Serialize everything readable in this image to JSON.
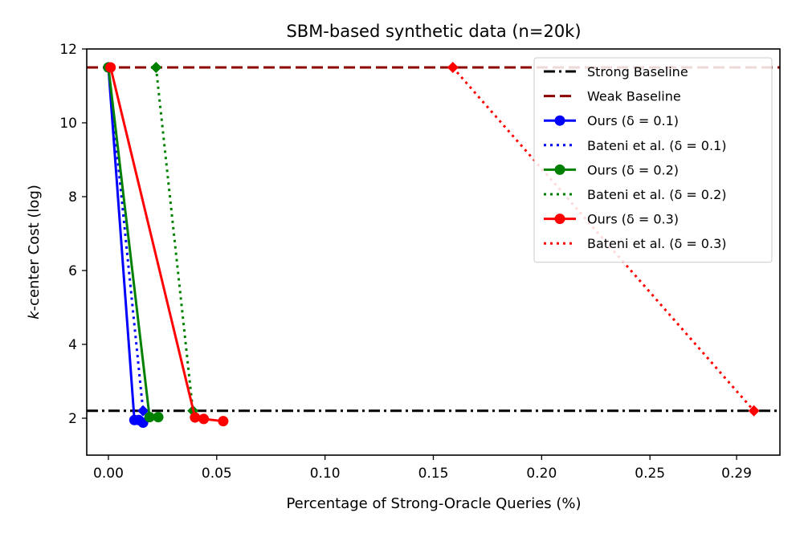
{
  "chart_data": {
    "type": "line",
    "title": "SBM-based synthetic data (n=20k)",
    "xlabel": "Percentage of Strong-Oracle Queries (%)",
    "ylabel": "k-center Cost (log)",
    "ylabel_prefix": "k",
    "ylabel_suffix": "-center Cost (log)",
    "xlim": [
      -0.01,
      0.31
    ],
    "ylim": [
      1.0,
      12.0
    ],
    "xticks": [
      0.0,
      0.05,
      0.1,
      0.15,
      0.2,
      0.25,
      0.29
    ],
    "xtick_labels": [
      "0.00",
      "0.05",
      "0.10",
      "0.15",
      "0.20",
      "0.25",
      "0.29"
    ],
    "yticks": [
      2,
      4,
      6,
      8,
      10,
      12
    ],
    "ytick_labels": [
      "2",
      "4",
      "6",
      "8",
      "10",
      "12"
    ],
    "grid": false,
    "legend_position": "top-right",
    "baselines": [
      {
        "name": "Strong Baseline",
        "value": 2.2,
        "color": "#000000",
        "style": "dashdot"
      },
      {
        "name": "Weak Baseline",
        "value": 11.5,
        "color": "#8b0000",
        "style": "dashed"
      }
    ],
    "series": [
      {
        "name": "Ours (δ = 0.1)",
        "color": "#0000ff",
        "style": "solid",
        "marker": "circle",
        "x": [
          0.0,
          0.012,
          0.014,
          0.016
        ],
        "y": [
          11.5,
          1.95,
          1.95,
          1.88
        ]
      },
      {
        "name": "Bateni et al. (δ = 0.1)",
        "color": "#0000ff",
        "style": "dotted",
        "marker": "diamond",
        "x": [
          0.0,
          0.016
        ],
        "y": [
          11.5,
          2.2
        ]
      },
      {
        "name": "Ours (δ = 0.2)",
        "color": "#008000",
        "style": "solid",
        "marker": "circle",
        "x": [
          0.0,
          0.019,
          0.023
        ],
        "y": [
          11.5,
          2.03,
          2.03
        ]
      },
      {
        "name": "Bateni et al. (δ = 0.2)",
        "color": "#008000",
        "style": "dotted",
        "marker": "diamond",
        "x": [
          0.022,
          0.039
        ],
        "y": [
          11.5,
          2.2
        ]
      },
      {
        "name": "Ours (δ = 0.3)",
        "color": "#ff0000",
        "style": "solid",
        "marker": "circle",
        "x": [
          0.001,
          0.04,
          0.044,
          0.053
        ],
        "y": [
          11.5,
          2.02,
          1.98,
          1.92
        ]
      },
      {
        "name": "Bateni et al. (δ = 0.3)",
        "color": "#ff0000",
        "style": "dotted",
        "marker": "diamond",
        "x": [
          0.159,
          0.298
        ],
        "y": [
          11.5,
          2.2
        ]
      }
    ],
    "legend": [
      {
        "label_main": "Strong Baseline",
        "label_delta": ""
      },
      {
        "label_main": "Weak Baseline",
        "label_delta": ""
      },
      {
        "label_main": "Ours (",
        "label_delta": "δ = 0.1)"
      },
      {
        "label_main": "Bateni et al. (",
        "label_delta": "δ = 0.1)"
      },
      {
        "label_main": "Ours (",
        "label_delta": "δ = 0.2)"
      },
      {
        "label_main": "Bateni et al. (",
        "label_delta": "δ = 0.2)"
      },
      {
        "label_main": "Ours (",
        "label_delta": "δ = 0.3)"
      },
      {
        "label_main": "Bateni et al. (",
        "label_delta": "δ = 0.3)"
      }
    ]
  }
}
